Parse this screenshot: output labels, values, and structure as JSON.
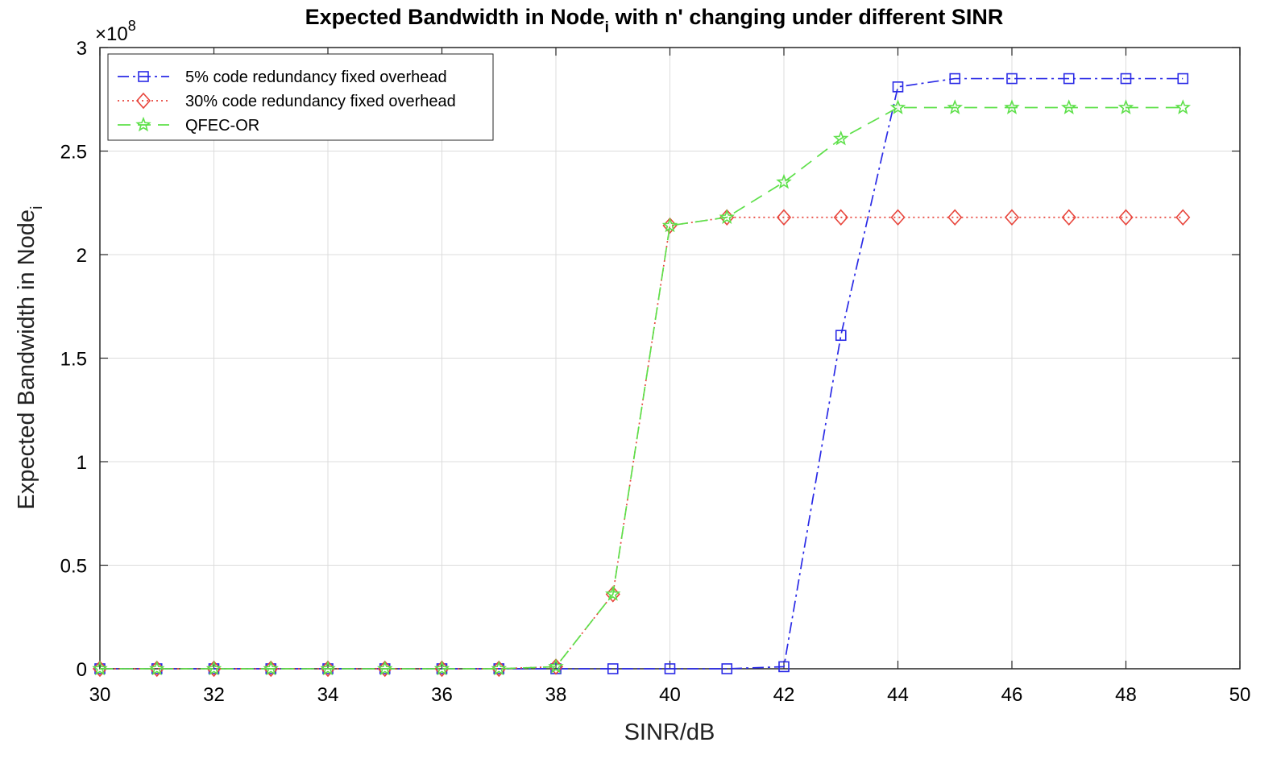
{
  "chart_data": {
    "type": "line",
    "title": {
      "main": "Expected Bandwidth in Node",
      "subscript": "i",
      "rest": " with n' changing under different SINR"
    },
    "xlabel": "SINR/dB",
    "ylabel": {
      "main": "Expected Bandwidth in Node",
      "subscript": "i"
    },
    "y_multiplier": {
      "base": "×10",
      "exponent": "8"
    },
    "xlim": [
      30,
      50
    ],
    "ylim": [
      0,
      3
    ],
    "x_ticks": [
      30,
      32,
      34,
      36,
      38,
      40,
      42,
      44,
      46,
      48,
      50
    ],
    "y_ticks": [
      0,
      0.5,
      1,
      1.5,
      2,
      2.5,
      3
    ],
    "x_tick_labels": [
      "30",
      "32",
      "34",
      "36",
      "38",
      "40",
      "42",
      "44",
      "46",
      "48",
      "50"
    ],
    "y_tick_labels": [
      "0",
      "0.5",
      "1",
      "1.5",
      "2",
      "2.5",
      "3"
    ],
    "grid": true,
    "legend_position": "top-left",
    "x": [
      30,
      31,
      32,
      33,
      34,
      35,
      36,
      37,
      38,
      39,
      40,
      41,
      42,
      43,
      44,
      45,
      46,
      47,
      48,
      49
    ],
    "series": [
      {
        "name": "5% code redundancy fixed overhead",
        "color": "#2a2ae6",
        "marker": "square",
        "line_style": "dashdot",
        "values": [
          0,
          0,
          0,
          0,
          0,
          0,
          0,
          0,
          0,
          0,
          0,
          0,
          0.01,
          1.61,
          2.81,
          2.85,
          2.85,
          2.85,
          2.85,
          2.85
        ]
      },
      {
        "name": "30% code redundancy fixed overhead",
        "color": "#e8453c",
        "marker": "diamond",
        "line_style": "dotted",
        "values": [
          0,
          0,
          0,
          0,
          0,
          0,
          0,
          0,
          0.01,
          0.36,
          2.14,
          2.18,
          2.18,
          2.18,
          2.18,
          2.18,
          2.18,
          2.18,
          2.18,
          2.18
        ]
      },
      {
        "name": "QFEC-OR",
        "color": "#5ee04a",
        "marker": "star",
        "line_style": "dashed",
        "values": [
          0,
          0,
          0,
          0,
          0,
          0,
          0,
          0,
          0.01,
          0.36,
          2.14,
          2.18,
          2.35,
          2.56,
          2.71,
          2.71,
          2.71,
          2.71,
          2.71,
          2.71
        ]
      }
    ]
  }
}
